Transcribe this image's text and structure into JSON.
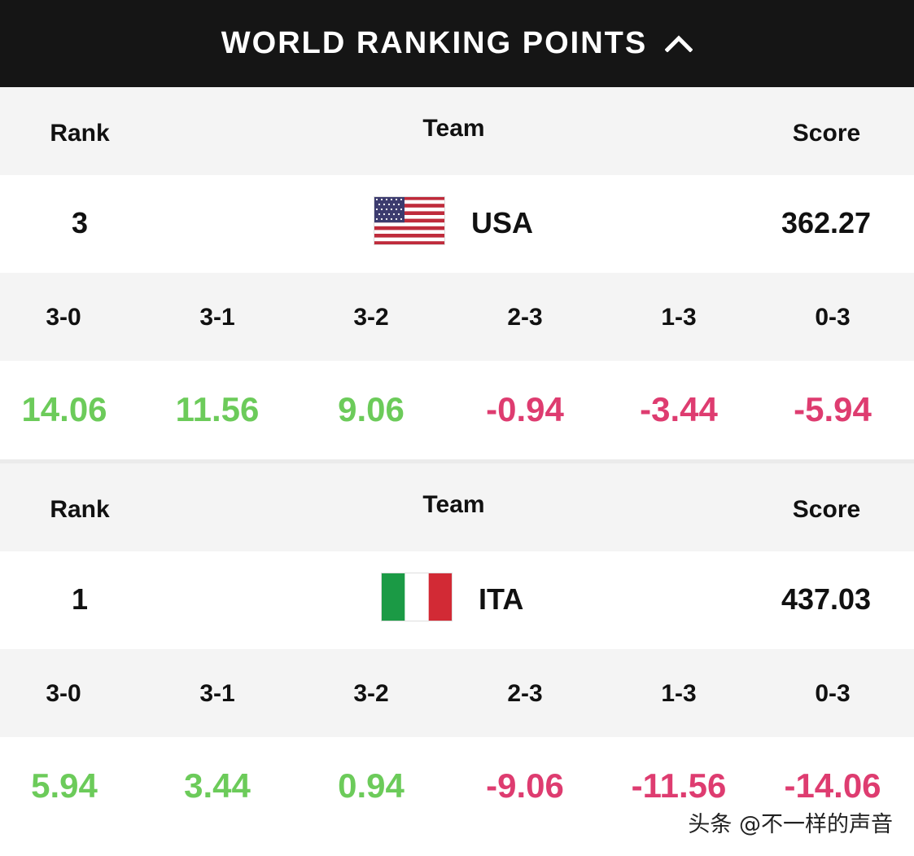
{
  "header": {
    "title": "WORLD RANKING POINTS",
    "toggle_icon": "chevron-up-icon"
  },
  "columns": {
    "rank": "Rank",
    "team": "Team",
    "score": "Score"
  },
  "outcome_labels": [
    "3-0",
    "3-1",
    "3-2",
    "2-3",
    "1-3",
    "0-3"
  ],
  "colors": {
    "positive": "#6ccb5a",
    "negative": "#de3c70",
    "header_bg": "#151515"
  },
  "teams": [
    {
      "rank": "3",
      "code": "USA",
      "flag_icon": "usa-flag-icon",
      "score": "362.27",
      "points": [
        {
          "value": "14.06",
          "sign": "positive"
        },
        {
          "value": "11.56",
          "sign": "positive"
        },
        {
          "value": "9.06",
          "sign": "positive"
        },
        {
          "value": "-0.94",
          "sign": "negative"
        },
        {
          "value": "-3.44",
          "sign": "negative"
        },
        {
          "value": "-5.94",
          "sign": "negative"
        }
      ]
    },
    {
      "rank": "1",
      "code": "ITA",
      "flag_icon": "italy-flag-icon",
      "score": "437.03",
      "points": [
        {
          "value": "5.94",
          "sign": "positive"
        },
        {
          "value": "3.44",
          "sign": "positive"
        },
        {
          "value": "0.94",
          "sign": "positive"
        },
        {
          "value": "-9.06",
          "sign": "negative"
        },
        {
          "value": "-11.56",
          "sign": "negative"
        },
        {
          "value": "-14.06",
          "sign": "negative"
        }
      ]
    }
  ],
  "watermark": "头条 @不一样的声音"
}
